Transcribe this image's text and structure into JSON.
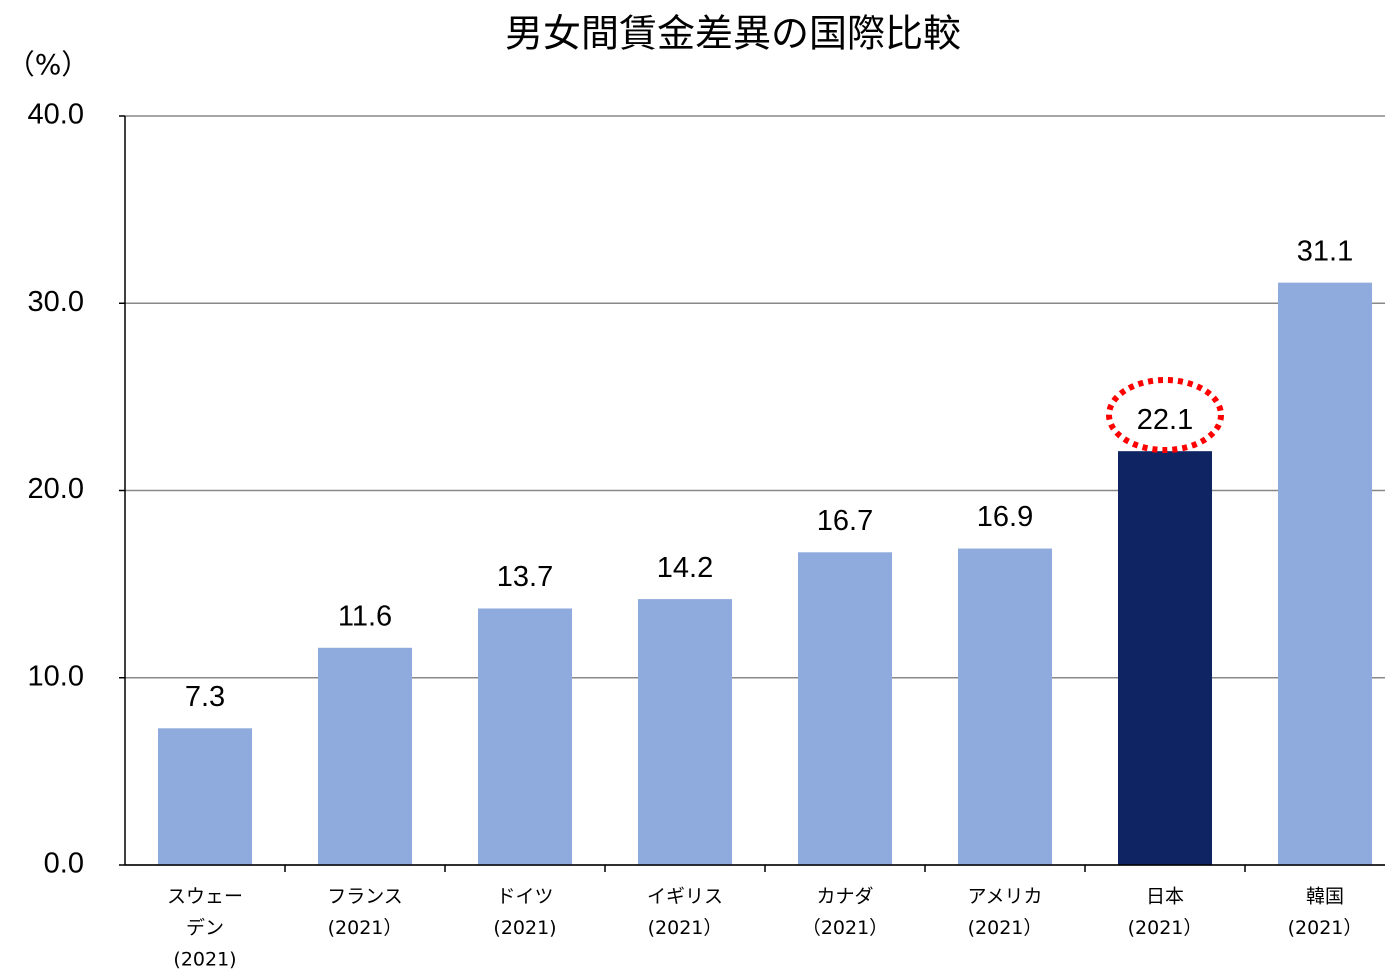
{
  "chart_data": {
    "type": "bar",
    "title": "男女間賃金差異の国際比較",
    "y_axis_label": "（%）",
    "categories": [
      [
        "スウェー",
        "デン",
        "(2021)"
      ],
      [
        "フランス",
        "(2021）"
      ],
      [
        "ドイツ",
        "(2021)"
      ],
      [
        "イギリス",
        "(2021）"
      ],
      [
        "カナダ",
        "（2021）"
      ],
      [
        "アメリカ",
        "(2021）"
      ],
      [
        "日本",
        "(2021）"
      ],
      [
        "韓国",
        "(2021）"
      ]
    ],
    "values": [
      7.3,
      11.6,
      13.7,
      14.2,
      16.7,
      16.9,
      22.1,
      31.1
    ],
    "colors": [
      "#8faadc",
      "#8faadc",
      "#8faadc",
      "#8faadc",
      "#8faadc",
      "#8faadc",
      "#0e2463",
      "#8faadc"
    ],
    "ylim": [
      0,
      40
    ],
    "yticks": [
      {
        "value": 0,
        "label": "0.0"
      },
      {
        "value": 10,
        "label": "10.0"
      },
      {
        "value": 20,
        "label": "20.0"
      },
      {
        "value": 30,
        "label": "30.0"
      },
      {
        "value": 40,
        "label": "40.0"
      }
    ],
    "grid": true
  }
}
